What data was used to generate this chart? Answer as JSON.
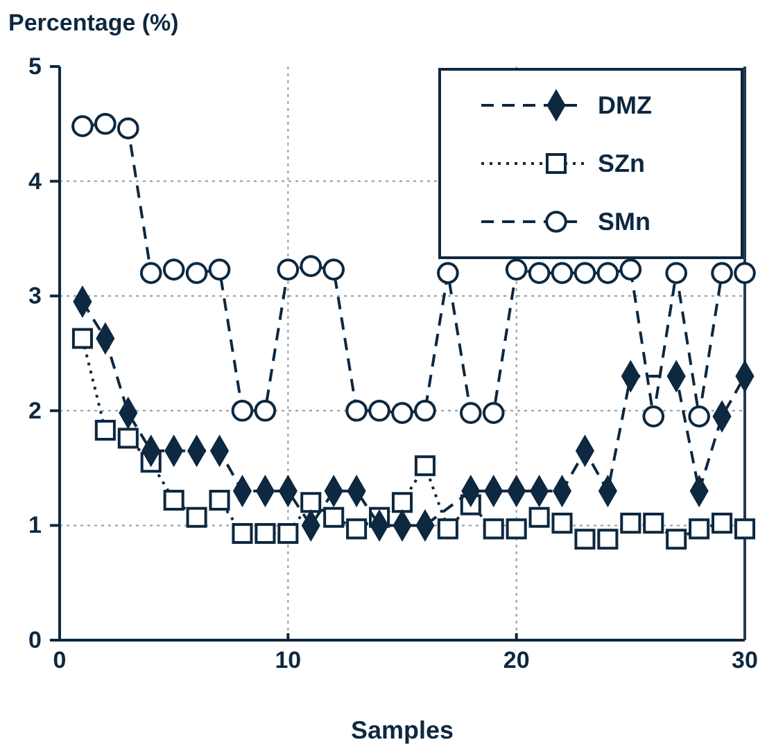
{
  "chart_data": {
    "type": "line",
    "xlabel": "Samples",
    "ylabel": "Percentage (%)",
    "x": [
      1,
      2,
      3,
      4,
      5,
      6,
      7,
      8,
      9,
      10,
      11,
      12,
      13,
      14,
      15,
      16,
      17,
      18,
      19,
      20,
      21,
      22,
      23,
      24,
      25,
      26,
      27,
      28,
      29,
      30
    ],
    "xlim": [
      0,
      30
    ],
    "xticks": [
      0,
      10,
      20,
      30
    ],
    "ylim": [
      0,
      5
    ],
    "yticks": [
      0,
      1,
      2,
      3,
      4,
      5
    ],
    "grid": true,
    "legend": "top right",
    "series": [
      {
        "name": "DMZ",
        "color": "#0d2840",
        "marker": "diamond",
        "line_style": "dashed",
        "values": [
          2.95,
          2.63,
          1.98,
          1.65,
          1.65,
          1.65,
          1.65,
          1.3,
          1.3,
          1.3,
          1.0,
          1.3,
          1.3,
          1.0,
          1.0,
          1.0,
          null,
          1.3,
          1.3,
          1.3,
          1.3,
          1.3,
          1.65,
          1.3,
          2.3,
          null,
          2.3,
          1.3,
          1.95,
          2.3
        ]
      },
      {
        "name": "SZn",
        "color": "#0d2840",
        "marker": "square",
        "line_style": "dotted",
        "values": [
          2.63,
          1.83,
          1.76,
          1.55,
          1.22,
          1.07,
          1.22,
          0.93,
          0.93,
          0.93,
          1.2,
          1.07,
          0.97,
          1.07,
          1.2,
          1.52,
          0.97,
          1.18,
          0.97,
          0.97,
          1.07,
          1.02,
          0.88,
          0.88,
          1.02,
          1.02,
          0.88,
          0.97,
          1.02,
          0.97
        ]
      },
      {
        "name": "SMn",
        "color": "#0d2840",
        "marker": "circle",
        "line_style": "dashed",
        "values": [
          4.48,
          4.5,
          4.46,
          3.2,
          3.23,
          3.2,
          3.23,
          2.0,
          2.0,
          3.23,
          3.26,
          3.23,
          2.0,
          2.0,
          1.98,
          2.0,
          3.2,
          1.98,
          1.98,
          3.23,
          3.2,
          3.2,
          3.2,
          3.2,
          3.23,
          1.95,
          3.2,
          1.95,
          3.2,
          3.2
        ]
      }
    ]
  }
}
